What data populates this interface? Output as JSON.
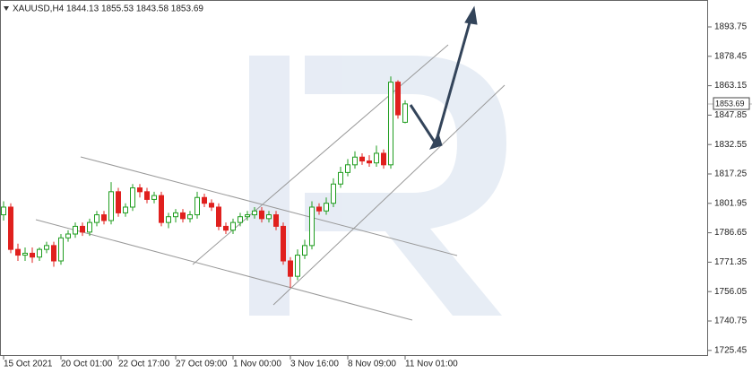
{
  "chart_data": {
    "type": "candlestick",
    "title": "XAUUSD,H4  1844.13 1855.53 1843.58 1853.69",
    "categories": [
      "15 Oct 2021",
      null,
      null,
      null,
      null,
      null,
      null,
      null,
      "20 Oct 01:00",
      null,
      null,
      null,
      null,
      null,
      null,
      null,
      "22 Oct 17:00",
      null,
      null,
      null,
      null,
      null,
      null,
      null,
      "27 Oct 09:00",
      null,
      null,
      null,
      null,
      null,
      null,
      null,
      "1 Nov 00:00",
      null,
      null,
      null,
      null,
      null,
      null,
      null,
      "3 Nov 16:00",
      null,
      null,
      null,
      null,
      null,
      null,
      null,
      "8 Nov 09:00",
      null,
      null,
      null,
      null,
      null,
      null,
      null,
      "11 Nov 01:00"
    ],
    "open": [
      1796,
      1800,
      1778,
      1775,
      1776,
      1774,
      1778,
      1780,
      1772,
      1784,
      1786,
      1790,
      1787,
      1792,
      1796,
      1793,
      1808,
      1797,
      1800,
      1810,
      1808,
      1804,
      1806,
      1792,
      1795,
      1797,
      1794,
      1796,
      1805,
      1802,
      1800,
      1790,
      1788,
      1792,
      1795,
      1796,
      1798,
      1794,
      1796,
      1790,
      1772,
      1764,
      1775,
      1780,
      1800,
      1798,
      1802,
      1812,
      1818,
      1822,
      1826,
      1824,
      1823,
      1828,
      1822,
      1865,
      1844.13
    ],
    "high": [
      1803,
      1802,
      1781,
      1779,
      1779,
      1779,
      1782,
      1782,
      1786,
      1788,
      1792,
      1792,
      1794,
      1798,
      1798,
      1813,
      1810,
      1802,
      1812,
      1812,
      1810,
      1808,
      1808,
      1797,
      1799,
      1799,
      1798,
      1808,
      1807,
      1804,
      1802,
      1792,
      1794,
      1797,
      1798,
      1800,
      1800,
      1798,
      1798,
      1792,
      1774,
      1778,
      1783,
      1803,
      1802,
      1805,
      1815,
      1821,
      1825,
      1829,
      1828,
      1827,
      1832,
      1830,
      1868,
      1866,
      1855.53
    ],
    "low": [
      1793,
      1776,
      1772,
      1772,
      1771,
      1772,
      1776,
      1769,
      1770,
      1782,
      1784,
      1785,
      1785,
      1790,
      1791,
      1791,
      1795,
      1795,
      1798,
      1805,
      1802,
      1802,
      1790,
      1789,
      1792,
      1792,
      1792,
      1794,
      1800,
      1798,
      1788,
      1786,
      1786,
      1790,
      1793,
      1794,
      1792,
      1792,
      1788,
      1770,
      1758,
      1762,
      1773,
      1778,
      1796,
      1796,
      1800,
      1810,
      1816,
      1820,
      1822,
      1821,
      1821,
      1820,
      1820,
      1846,
      1843.58
    ],
    "close": [
      1800,
      1778,
      1775,
      1776,
      1774,
      1778,
      1780,
      1772,
      1784,
      1786,
      1790,
      1787,
      1792,
      1796,
      1793,
      1808,
      1797,
      1800,
      1810,
      1808,
      1804,
      1806,
      1792,
      1795,
      1797,
      1794,
      1796,
      1805,
      1802,
      1800,
      1790,
      1788,
      1792,
      1795,
      1796,
      1798,
      1794,
      1796,
      1790,
      1772,
      1764,
      1775,
      1780,
      1800,
      1798,
      1802,
      1812,
      1818,
      1822,
      1826,
      1824,
      1823,
      1828,
      1822,
      1865,
      1848,
      1853.69
    ],
    "up_color": "#1f9d1f",
    "down_color": "#e0201e",
    "ylim": [
      1722.56,
      1907.74
    ],
    "yticks": [
      1725.45,
      1740.75,
      1756.05,
      1771.35,
      1786.65,
      1801.95,
      1817.25,
      1832.55,
      1847.85,
      1863.15,
      1878.45,
      1893.75
    ]
  }
}
